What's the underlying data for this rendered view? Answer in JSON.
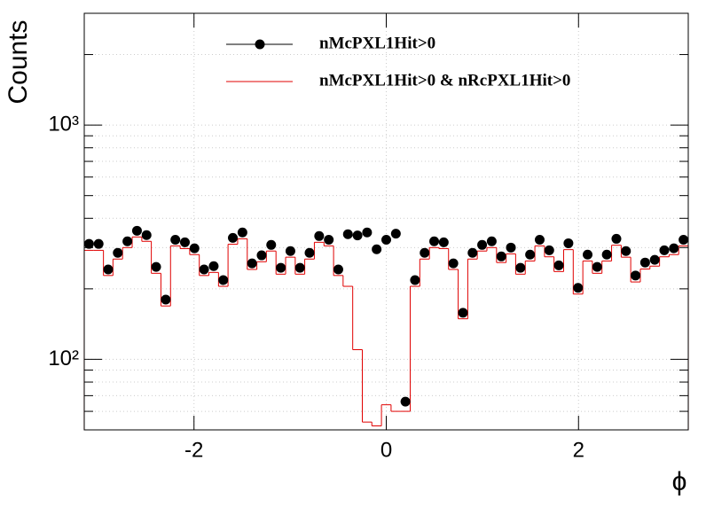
{
  "chart_data": {
    "type": "histogram",
    "ylabel": "Counts",
    "xlabel": "ϕ",
    "xlim": [
      -3.1416,
      3.1416
    ],
    "ylim": [
      50,
      3000
    ],
    "log_y": true,
    "grid": true,
    "legend": "top",
    "xticks": [
      -2,
      0,
      2
    ],
    "yticks": [
      {
        "value": 100,
        "label": "10²"
      },
      {
        "value": 1000,
        "label": "10³"
      }
    ],
    "yminorticks": [
      60,
      70,
      80,
      90,
      200,
      300,
      400,
      500,
      600,
      700,
      800,
      900,
      2000,
      3000
    ],
    "bins": [
      -3.142,
      -3.042,
      -2.942,
      -2.843,
      -2.743,
      -2.643,
      -2.543,
      -2.444,
      -2.344,
      -2.244,
      -2.144,
      -2.045,
      -1.945,
      -1.845,
      -1.745,
      -1.646,
      -1.546,
      -1.446,
      -1.346,
      -1.247,
      -1.147,
      -1.047,
      -0.947,
      -0.848,
      -0.748,
      -0.648,
      -0.548,
      -0.449,
      -0.349,
      -0.249,
      -0.15,
      -0.05,
      0.05,
      0.15,
      0.249,
      0.349,
      0.449,
      0.548,
      0.648,
      0.748,
      0.848,
      0.947,
      1.047,
      1.147,
      1.247,
      1.346,
      1.446,
      1.546,
      1.646,
      1.745,
      1.845,
      1.945,
      2.045,
      2.144,
      2.244,
      2.344,
      2.444,
      2.543,
      2.643,
      2.743,
      2.843,
      2.942,
      3.042,
      3.142
    ],
    "series": [
      {
        "name": "nMcPXL1Hit>0",
        "color": "#000000",
        "style": "markers",
        "values": [
          311,
          311,
          242,
          285,
          319,
          354,
          339,
          248,
          180,
          324,
          316,
          298,
          242,
          250,
          218,
          330,
          348,
          257,
          278,
          308,
          246,
          290,
          246,
          285,
          336,
          324,
          242,
          342,
          338,
          348,
          295,
          324,
          344,
          66,
          218,
          285,
          319,
          316,
          257,
          158,
          285,
          308,
          319,
          275,
          300,
          246,
          280,
          324,
          292,
          252,
          313,
          202,
          280,
          248,
          280,
          327,
          290,
          228,
          259,
          266,
          292,
          298,
          324
        ]
      },
      {
        "name": "nMcPXL1Hit>0 & nRcPXL1Hit>0",
        "color": "#e00000",
        "style": "step",
        "values": [
          292,
          292,
          228,
          268,
          300,
          333,
          319,
          233,
          169,
          305,
          297,
          280,
          228,
          235,
          205,
          310,
          327,
          242,
          261,
          290,
          231,
          273,
          231,
          268,
          316,
          305,
          228,
          205,
          110,
          54,
          52,
          64,
          60,
          60,
          205,
          268,
          300,
          297,
          242,
          149,
          268,
          290,
          300,
          259,
          282,
          231,
          263,
          305,
          274,
          237,
          294,
          190,
          263,
          233,
          263,
          307,
          273,
          214,
          243,
          250,
          274,
          280,
          305
        ]
      }
    ]
  }
}
